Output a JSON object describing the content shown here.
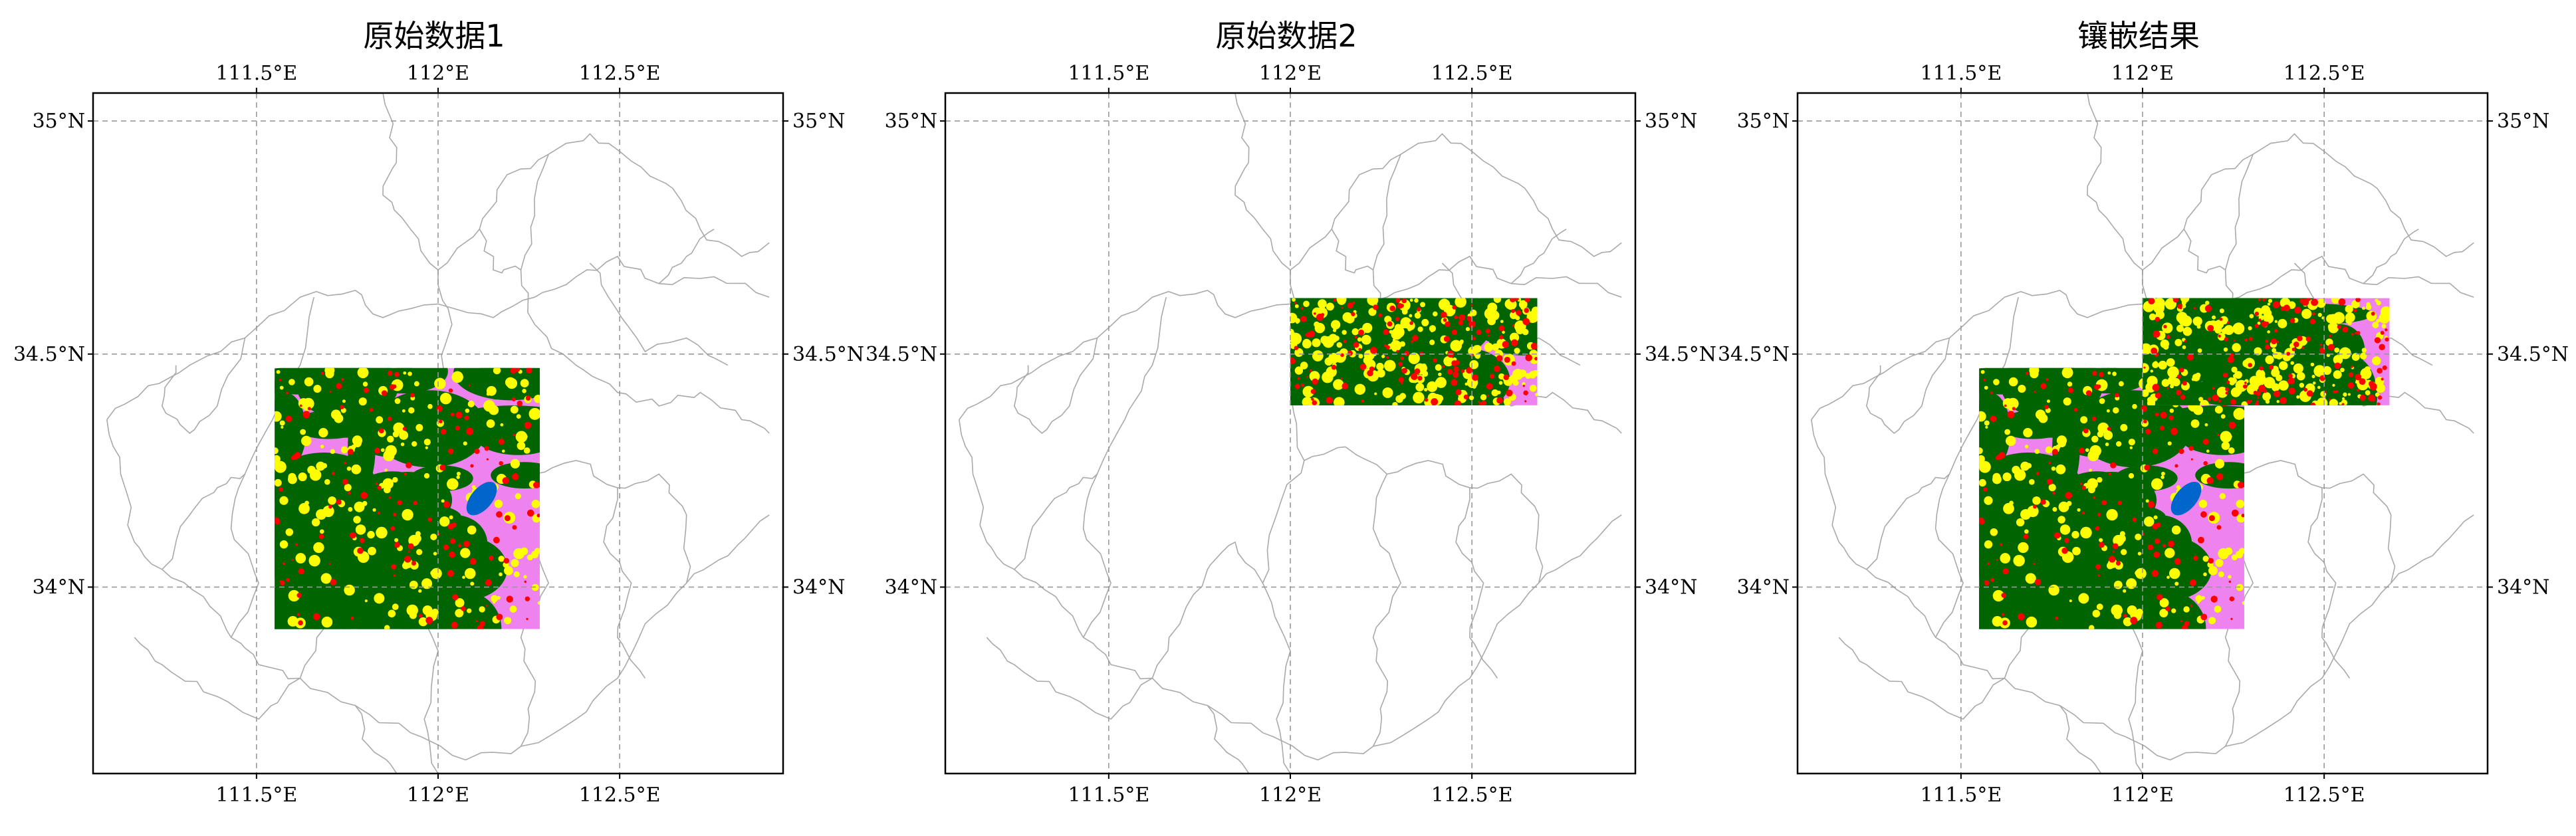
{
  "figure": {
    "panels": [
      {
        "title": "原始数据1"
      },
      {
        "title": "原始数据2"
      },
      {
        "title": "镶嵌结果"
      }
    ],
    "lon_ticks": [
      "111.5°E",
      "112°E",
      "112.5°E"
    ],
    "lat_ticks": [
      "35°N",
      "34.5°N",
      "34°N"
    ],
    "colors": {
      "forest": "#006400",
      "urban": "#ff0000",
      "cropland": "#ee82ee",
      "grassland": "#ffff00",
      "water": "#0066cc",
      "boundary": "#a9a9a9",
      "gridline": "#999999"
    }
  },
  "chart_data": [
    {
      "type": "map",
      "title": "原始数据1",
      "lon_range": [
        111.05,
        112.95
      ],
      "lat_range": [
        33.6,
        35.06
      ],
      "lon_ticks": [
        111.5,
        112.0,
        112.5
      ],
      "lat_ticks": [
        34.0,
        34.5,
        35.0
      ],
      "grid": true,
      "rasters": [
        {
          "lon_range": [
            111.55,
            112.28
          ],
          "lat_range": [
            33.91,
            34.47
          ]
        }
      ]
    },
    {
      "type": "map",
      "title": "原始数据2",
      "lon_range": [
        111.05,
        112.95
      ],
      "lat_range": [
        33.6,
        35.06
      ],
      "lon_ticks": [
        111.5,
        112.0,
        112.5
      ],
      "lat_ticks": [
        34.0,
        34.5,
        35.0
      ],
      "grid": true,
      "rasters": [
        {
          "lon_range": [
            112.0,
            112.68
          ],
          "lat_range": [
            34.39,
            34.62
          ]
        }
      ]
    },
    {
      "type": "map",
      "title": "镶嵌结果",
      "lon_range": [
        111.05,
        112.95
      ],
      "lat_range": [
        33.6,
        35.06
      ],
      "lon_ticks": [
        111.5,
        112.0,
        112.5
      ],
      "lat_ticks": [
        34.0,
        34.5,
        35.0
      ],
      "grid": true,
      "rasters": [
        {
          "lon_range": [
            111.55,
            112.28
          ],
          "lat_range": [
            33.91,
            34.47
          ]
        },
        {
          "lon_range": [
            112.0,
            112.68
          ],
          "lat_range": [
            34.39,
            34.62
          ]
        }
      ]
    }
  ]
}
